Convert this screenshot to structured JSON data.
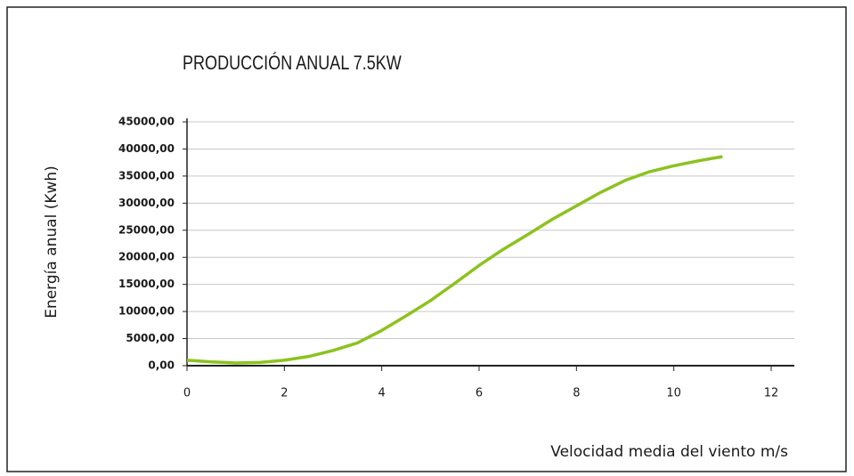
{
  "chart_data": {
    "type": "line",
    "title": "PRODUCCIÓN ANUAL 7.5KW",
    "y_label": "Energía anual (Kwh)",
    "x_label": "Velocidad media del viento m/s",
    "x": [
      0,
      0.5,
      1,
      1.5,
      2,
      2.5,
      3,
      3.5,
      4,
      4.5,
      5,
      5.5,
      6,
      6.5,
      7,
      7.5,
      8,
      8.5,
      9,
      9.5,
      10,
      10.5,
      11
    ],
    "series": [
      {
        "name": "Producción",
        "color": "#8cc21e",
        "values": [
          1000,
          700,
          500,
          600,
          1000,
          1700,
          2800,
          4200,
          6500,
          9200,
          12000,
          15200,
          18500,
          21500,
          24200,
          27000,
          29500,
          32000,
          34200,
          35800,
          36900,
          37800,
          38600
        ]
      }
    ],
    "xlim": [
      0,
      12
    ],
    "xticks": [
      0,
      2,
      4,
      6,
      8,
      10,
      12
    ],
    "ylim": [
      0,
      45000
    ],
    "yticks": [
      {
        "value": 0,
        "label": "0,00"
      },
      {
        "value": 5000,
        "label": "5000,00"
      },
      {
        "value": 10000,
        "label": "10000,00"
      },
      {
        "value": 15000,
        "label": "15000,00"
      },
      {
        "value": 20000,
        "label": "20000,00"
      },
      {
        "value": 25000,
        "label": "25000,00"
      },
      {
        "value": 30000,
        "label": "30000,00"
      },
      {
        "value": 35000,
        "label": "35000,00"
      },
      {
        "value": 40000,
        "label": "40000,00"
      },
      {
        "value": 45000,
        "label": "45000,00"
      }
    ],
    "grid": true
  }
}
